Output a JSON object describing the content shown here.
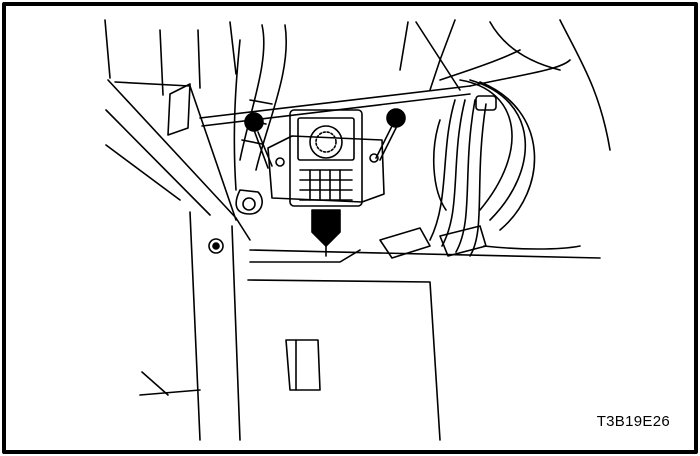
{
  "figure": {
    "id_label": "T3B19E26"
  },
  "colors": {
    "ink": "#000000",
    "paper": "#ffffff"
  }
}
